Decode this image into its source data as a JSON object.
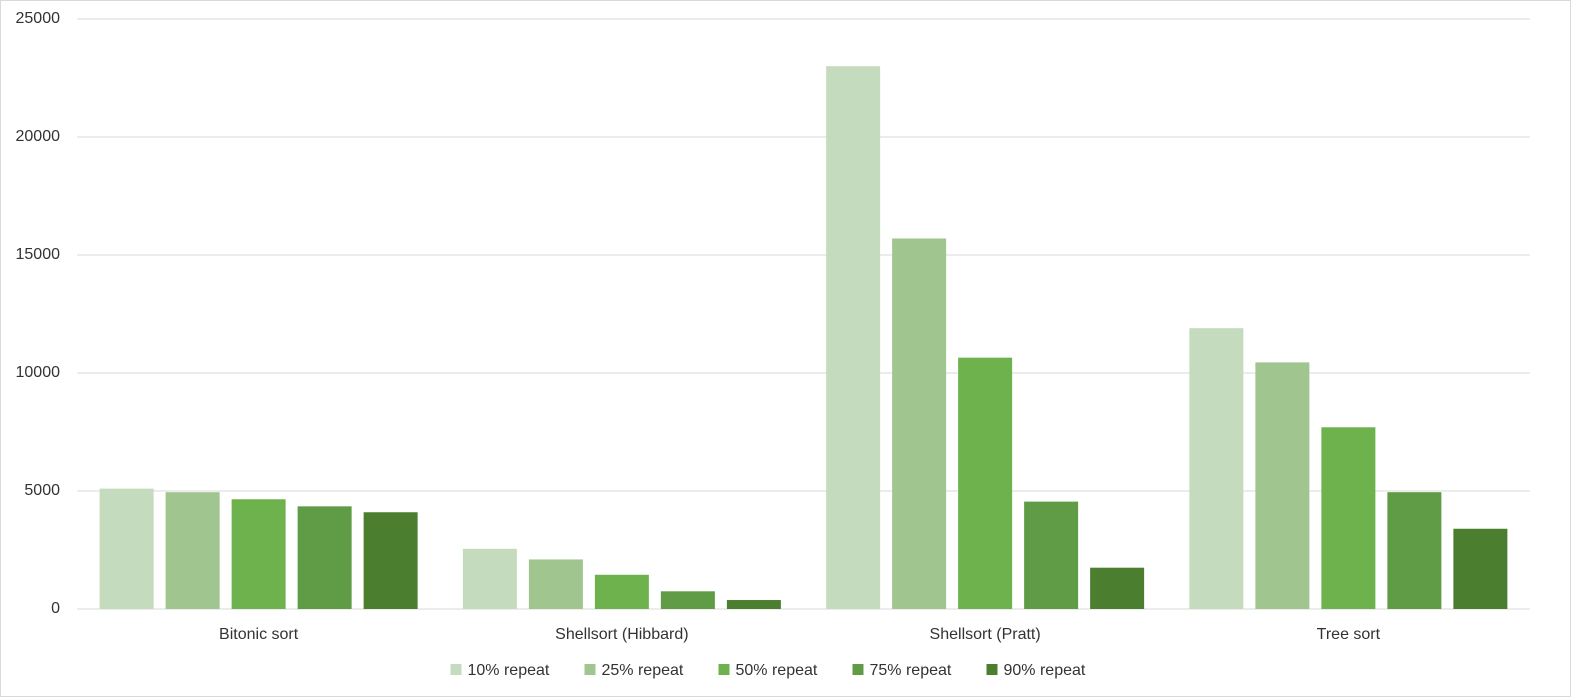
{
  "chart_data": {
    "type": "bar",
    "categories": [
      "Bitonic sort",
      "Shellsort (Hibbard)",
      "Shellsort (Pratt)",
      "Tree sort"
    ],
    "series": [
      {
        "name": "10% repeat",
        "color": "#c4dbbd",
        "values": [
          5100,
          2550,
          23000,
          11900
        ]
      },
      {
        "name": "25% repeat",
        "color": "#a0c58f",
        "values": [
          4950,
          2100,
          15700,
          10450
        ]
      },
      {
        "name": "50% repeat",
        "color": "#6db24c",
        "values": [
          4650,
          1450,
          10650,
          7700
        ]
      },
      {
        "name": "75% repeat",
        "color": "#5f9c45",
        "values": [
          4350,
          750,
          4550,
          4950
        ]
      },
      {
        "name": "90% repeat",
        "color": "#4b7f2f",
        "values": [
          4100,
          380,
          1750,
          3400
        ]
      }
    ],
    "ylim": [
      0,
      25000
    ],
    "yticks": [
      0,
      5000,
      10000,
      15000,
      20000,
      25000
    ],
    "grid": true,
    "legend": "bottom"
  }
}
